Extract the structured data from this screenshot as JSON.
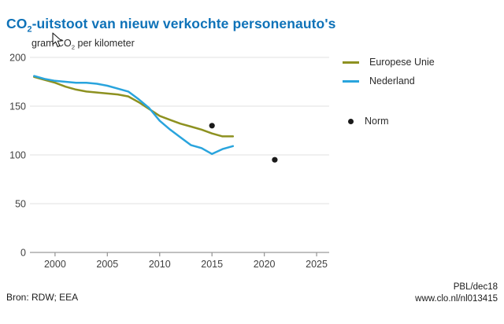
{
  "title": {
    "prefix": "CO",
    "sub": "2",
    "rest": "-uitstoot van nieuw verkochte personenauto's"
  },
  "subtitle": {
    "prefix": "gram CO",
    "sub": "2",
    "rest": " per kilometer"
  },
  "legend": {
    "eu": "Europese Unie",
    "nl": "Nederland",
    "norm": "Norm"
  },
  "footer": {
    "source": "Bron: RDW; EEA",
    "credit": "PBL/dec18",
    "url": "www.clo.nl/nl013415"
  },
  "colors": {
    "title_blue": "#0e72b8",
    "eu_line": "#8d9120",
    "nl_line": "#29a4dd",
    "norm_dot": "#1a1a1a",
    "gridline": "#e2e2e2",
    "axis": "#9a9a9a",
    "tick_label": "#404040"
  },
  "chart_data": {
    "type": "line",
    "title": "CO2-uitstoot van nieuw verkochte personenauto's",
    "ylabel": "gram CO2 per kilometer",
    "x": [
      1998,
      1999,
      2000,
      2001,
      2002,
      2003,
      2004,
      2005,
      2006,
      2007,
      2008,
      2009,
      2010,
      2011,
      2012,
      2013,
      2014,
      2015,
      2016,
      2017
    ],
    "series": [
      {
        "name": "Europese Unie",
        "color_key": "eu_line",
        "values": [
          180,
          177,
          174,
          170,
          167,
          165,
          164,
          163,
          162,
          160,
          154,
          147,
          140,
          136,
          132,
          129,
          126,
          122,
          119,
          119
        ]
      },
      {
        "name": "Nederland",
        "color_key": "nl_line",
        "values": [
          181,
          178,
          176,
          175,
          174,
          174,
          173,
          171,
          168,
          165,
          157,
          148,
          135,
          126,
          118,
          110,
          107,
          101,
          106,
          109
        ]
      }
    ],
    "norm_points": [
      {
        "name": "Norm",
        "x": 2015,
        "y": 130
      },
      {
        "name": "Norm",
        "x": 2021,
        "y": 95
      }
    ],
    "xticks": [
      2000,
      2005,
      2010,
      2015,
      2020,
      2025
    ],
    "yticks": [
      0,
      50,
      100,
      150,
      200
    ],
    "xlim": [
      1997.6,
      2026.2
    ],
    "ylim": [
      0,
      200
    ],
    "grid": true,
    "legend_position": "right-of-plot"
  }
}
